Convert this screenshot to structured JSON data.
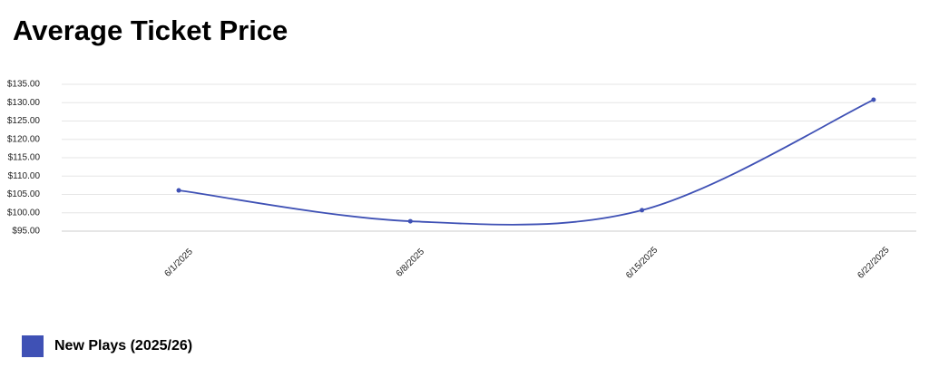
{
  "chart_data": {
    "type": "line",
    "title": "Average Ticket Price",
    "categories": [
      "6/1/2025",
      "6/8/2025",
      "6/15/2025",
      "6/22/2025"
    ],
    "series": [
      {
        "name": "New Plays (2025/26)",
        "color": "#3f51b5",
        "values": [
          106.1,
          97.7,
          100.7,
          130.8
        ]
      }
    ],
    "ylim": [
      95,
      135
    ],
    "yticks": [
      {
        "value": 95,
        "label": "$95.00"
      },
      {
        "value": 100,
        "label": "$100.00"
      },
      {
        "value": 105,
        "label": "$105.00"
      },
      {
        "value": 110,
        "label": "$110.00"
      },
      {
        "value": 115,
        "label": "$115.00"
      },
      {
        "value": 120,
        "label": "$120.00"
      },
      {
        "value": 125,
        "label": "$125.00"
      },
      {
        "value": 130,
        "label": "$130.00"
      },
      {
        "value": 135,
        "label": "$135.00"
      }
    ],
    "grid": true
  }
}
